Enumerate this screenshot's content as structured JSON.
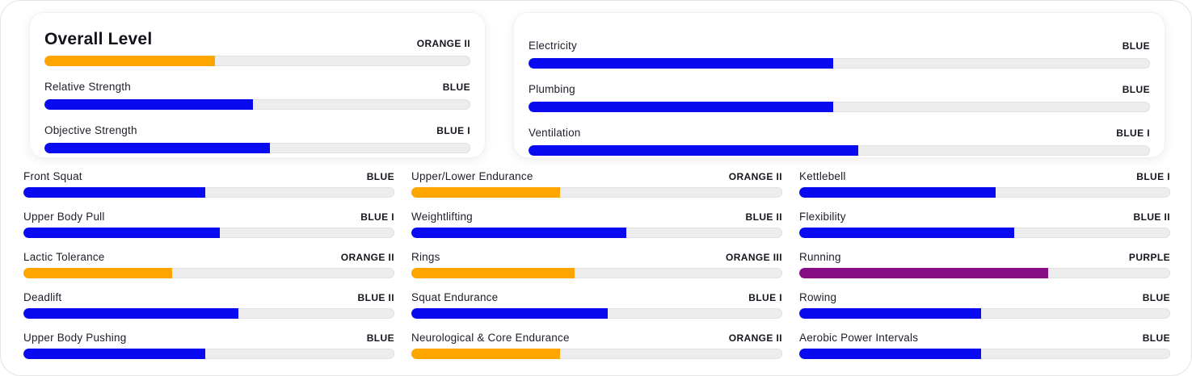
{
  "colors": {
    "blue": "#0a0af0",
    "orange": "#ffa502",
    "purple": "#860d86",
    "track": "#ededed"
  },
  "overall_card": {
    "rows": [
      {
        "label": "Overall Level",
        "level": "ORANGE II",
        "percent": 40,
        "color": "orange"
      },
      {
        "label": "Relative Strength",
        "level": "BLUE",
        "percent": 49,
        "color": "blue"
      },
      {
        "label": "Objective Strength",
        "level": "BLUE I",
        "percent": 53,
        "color": "blue"
      }
    ]
  },
  "systems_card": {
    "rows": [
      {
        "label": "Electricity",
        "level": "BLUE",
        "percent": 49,
        "color": "blue"
      },
      {
        "label": "Plumbing",
        "level": "BLUE",
        "percent": 49,
        "color": "blue"
      },
      {
        "label": "Ventilation",
        "level": "BLUE I",
        "percent": 53,
        "color": "blue"
      }
    ]
  },
  "metrics": {
    "columns": [
      {
        "items": [
          {
            "label": "Front Squat",
            "level": "BLUE",
            "percent": 49,
            "color": "blue"
          },
          {
            "label": "Upper Body Pull",
            "level": "BLUE I",
            "percent": 53,
            "color": "blue"
          },
          {
            "label": "Lactic Tolerance",
            "level": "ORANGE II",
            "percent": 40,
            "color": "orange"
          },
          {
            "label": "Deadlift",
            "level": "BLUE II",
            "percent": 58,
            "color": "blue"
          },
          {
            "label": "Upper Body Pushing",
            "level": "BLUE",
            "percent": 49,
            "color": "blue"
          }
        ]
      },
      {
        "items": [
          {
            "label": "Upper/Lower Endurance",
            "level": "ORANGE II",
            "percent": 40,
            "color": "orange"
          },
          {
            "label": "Weightlifting",
            "level": "BLUE II",
            "percent": 58,
            "color": "blue"
          },
          {
            "label": "Rings",
            "level": "ORANGE III",
            "percent": 44,
            "color": "orange"
          },
          {
            "label": "Squat Endurance",
            "level": "BLUE I",
            "percent": 53,
            "color": "blue"
          },
          {
            "label": "Neurological & Core Endurance",
            "level": "ORANGE II",
            "percent": 40,
            "color": "orange"
          }
        ]
      },
      {
        "items": [
          {
            "label": "Kettlebell",
            "level": "BLUE I",
            "percent": 53,
            "color": "blue"
          },
          {
            "label": "Flexibility",
            "level": "BLUE II",
            "percent": 58,
            "color": "blue"
          },
          {
            "label": "Running",
            "level": "PURPLE",
            "percent": 67,
            "color": "purple"
          },
          {
            "label": "Rowing",
            "level": "BLUE",
            "percent": 49,
            "color": "blue"
          },
          {
            "label": "Aerobic Power Intervals",
            "level": "BLUE",
            "percent": 49,
            "color": "blue"
          }
        ]
      }
    ]
  }
}
